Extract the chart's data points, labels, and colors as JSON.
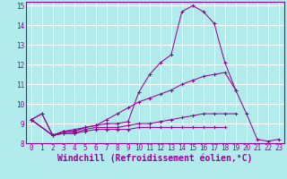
{
  "title": "",
  "xlabel": "Windchill (Refroidissement éolien,°C)",
  "ylabel": "",
  "bg_color": "#b2ebeb",
  "grid_color": "#ffffff",
  "line_color": "#990099",
  "xlim": [
    -0.5,
    23.5
  ],
  "ylim": [
    8,
    15.2
  ],
  "xticks": [
    0,
    1,
    2,
    3,
    4,
    5,
    6,
    7,
    8,
    9,
    10,
    11,
    12,
    13,
    14,
    15,
    16,
    17,
    18,
    19,
    20,
    21,
    22,
    23
  ],
  "yticks": [
    8,
    9,
    10,
    11,
    12,
    13,
    14,
    15
  ],
  "series": [
    [
      9.2,
      9.5,
      8.4,
      8.6,
      8.6,
      8.8,
      8.9,
      9.0,
      9.0,
      9.1,
      10.6,
      11.5,
      12.1,
      12.5,
      14.7,
      15.0,
      14.7,
      14.1,
      12.1,
      10.7,
      9.5,
      8.2,
      8.1,
      8.2
    ],
    [
      9.2,
      9.5,
      8.4,
      8.6,
      8.6,
      8.8,
      8.9,
      9.2,
      9.5,
      9.8,
      10.1,
      10.3,
      10.5,
      10.7,
      11.0,
      11.2,
      11.4,
      11.5,
      11.6,
      10.7,
      null,
      null,
      null,
      null
    ],
    [
      9.2,
      null,
      8.4,
      8.5,
      8.5,
      8.7,
      8.8,
      8.8,
      8.8,
      8.9,
      9.0,
      9.0,
      9.1,
      9.2,
      9.3,
      9.4,
      9.5,
      9.5,
      9.5,
      9.5,
      null,
      null,
      null,
      null
    ],
    [
      9.2,
      null,
      8.4,
      8.5,
      8.5,
      8.6,
      8.7,
      8.7,
      8.7,
      8.7,
      8.8,
      8.8,
      8.8,
      8.8,
      8.8,
      8.8,
      8.8,
      8.8,
      8.8,
      null,
      null,
      null,
      null,
      null
    ],
    [
      9.2,
      null,
      8.4,
      8.6,
      8.7,
      8.8,
      null,
      null,
      null,
      null,
      null,
      null,
      null,
      null,
      null,
      null,
      null,
      null,
      null,
      null,
      null,
      null,
      null,
      null
    ]
  ],
  "font_color": "#990099",
  "tick_fontsize": 5.5,
  "xlabel_fontsize": 7.0,
  "spine_color": "#990099"
}
